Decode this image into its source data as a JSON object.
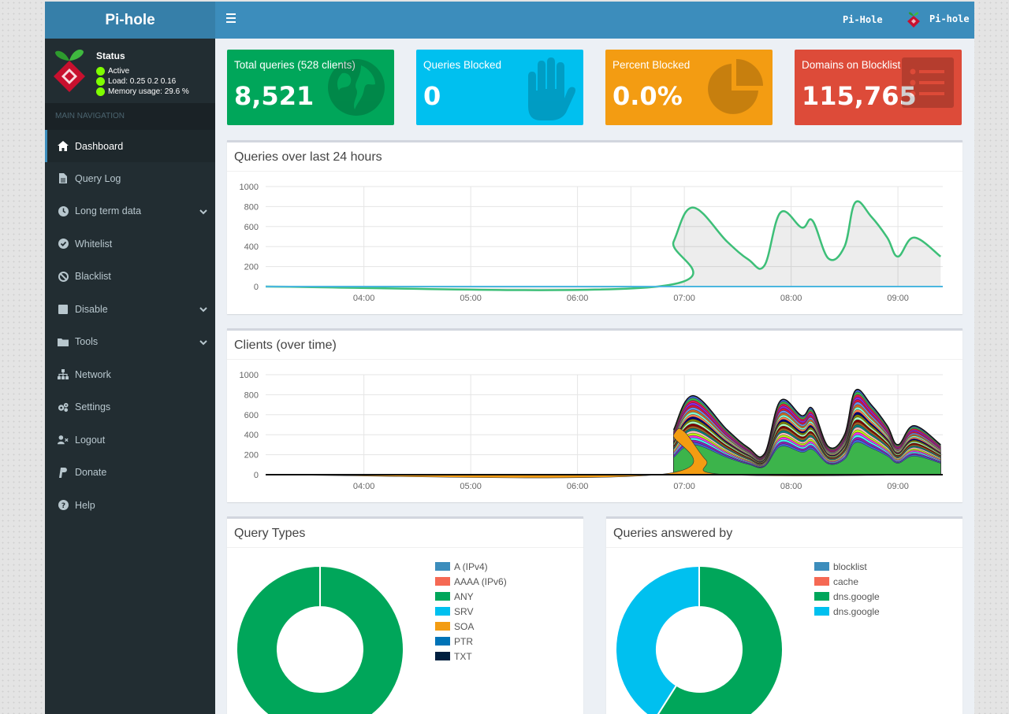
{
  "header": {
    "logo_text": "Pi-hole",
    "hostname": "Pi-Hole",
    "user_label": "Pi-hole"
  },
  "sidebar": {
    "status_title": "Status",
    "status_active": "Active",
    "status_load": "Load:  0.25  0.2  0.16",
    "status_memory": "Memory usage:  29.6 %",
    "nav_header": "MAIN NAVIGATION",
    "items": [
      {
        "label": "Dashboard",
        "icon": "home-icon"
      },
      {
        "label": "Query Log",
        "icon": "file-icon"
      },
      {
        "label": "Long term data",
        "icon": "clock-icon"
      },
      {
        "label": "Whitelist",
        "icon": "check-circle-icon"
      },
      {
        "label": "Blacklist",
        "icon": "ban-icon"
      },
      {
        "label": "Disable",
        "icon": "stop-icon"
      },
      {
        "label": "Tools",
        "icon": "folder-icon"
      },
      {
        "label": "Network",
        "icon": "network-icon"
      },
      {
        "label": "Settings",
        "icon": "gears-icon"
      },
      {
        "label": "Logout",
        "icon": "user-times-icon"
      },
      {
        "label": "Donate",
        "icon": "paypal-icon"
      },
      {
        "label": "Help",
        "icon": "question-circle-icon"
      }
    ]
  },
  "stats": [
    {
      "label": "Total queries (528 clients)",
      "value": "8,521",
      "color": "#00a65a",
      "icon": "globe-icon"
    },
    {
      "label": "Queries Blocked",
      "value": "0",
      "color": "#00c0ef",
      "icon": "hand-icon"
    },
    {
      "label": "Percent Blocked",
      "value": "0.0%",
      "color": "#f39c12",
      "icon": "pie-chart-icon"
    },
    {
      "label": "Domains on Blocklist",
      "value": "115,765",
      "color": "#dd4b39",
      "icon": "list-icon"
    }
  ],
  "panels": {
    "queries_title": "Queries over last 24 hours",
    "clients_title": "Clients (over time)",
    "query_types_title": "Query Types",
    "answered_by_title": "Queries answered by"
  },
  "chart_data": [
    {
      "type": "area",
      "title": "Queries over last 24 hours",
      "ylim": [
        0,
        1000
      ],
      "y_ticks": [
        0,
        200,
        400,
        600,
        800,
        1000
      ],
      "x_ticks": [
        "04:00",
        "05:00",
        "06:00",
        "07:00",
        "08:00",
        "09:00"
      ],
      "x_range_hours": [
        3.08,
        9.42
      ],
      "series": [
        {
          "color": "#3dbf78",
          "points": [
            [
              3.08,
              0
            ],
            [
              6.75,
              0
            ],
            [
              6.9,
              450
            ],
            [
              7.08,
              790
            ],
            [
              7.4,
              450
            ],
            [
              7.6,
              270
            ],
            [
              7.75,
              210
            ],
            [
              7.9,
              740
            ],
            [
              8.1,
              590
            ],
            [
              8.2,
              660
            ],
            [
              8.35,
              280
            ],
            [
              8.5,
              400
            ],
            [
              8.6,
              840
            ],
            [
              8.75,
              700
            ],
            [
              8.9,
              490
            ],
            [
              9.0,
              300
            ],
            [
              9.15,
              490
            ],
            [
              9.4,
              300
            ]
          ]
        },
        {
          "color": "#4ab6df",
          "points": [
            [
              3.08,
              0
            ],
            [
              9.42,
              0
            ]
          ]
        }
      ],
      "grid": true
    },
    {
      "type": "area",
      "title": "Clients (over time)",
      "stacked": true,
      "ylim": [
        0,
        1000
      ],
      "y_ticks": [
        0,
        200,
        400,
        600,
        800,
        1000
      ],
      "x_ticks": [
        "04:00",
        "05:00",
        "06:00",
        "07:00",
        "08:00",
        "09:00"
      ],
      "x_range_hours": [
        3.08,
        9.42
      ],
      "series": [
        {
          "color": "#f39c12",
          "points": [
            [
              3.08,
              0
            ],
            [
              6.75,
              0
            ],
            [
              6.9,
              400
            ],
            [
              7.0,
              430
            ],
            [
              7.2,
              150
            ],
            [
              7.4,
              0
            ],
            [
              9.42,
              0
            ]
          ]
        }
      ],
      "total_points": [
        [
          3.08,
          0
        ],
        [
          6.75,
          0
        ],
        [
          6.9,
          450
        ],
        [
          7.08,
          790
        ],
        [
          7.4,
          450
        ],
        [
          7.6,
          270
        ],
        [
          7.75,
          210
        ],
        [
          7.9,
          740
        ],
        [
          8.1,
          590
        ],
        [
          8.2,
          660
        ],
        [
          8.35,
          280
        ],
        [
          8.5,
          400
        ],
        [
          8.6,
          840
        ],
        [
          8.75,
          700
        ],
        [
          8.9,
          490
        ],
        [
          9.0,
          300
        ],
        [
          9.15,
          490
        ],
        [
          9.4,
          300
        ]
      ],
      "grid": true
    },
    {
      "type": "pie",
      "title": "Query Types",
      "labels": [
        "A (IPv4)",
        "AAAA (IPv6)",
        "ANY",
        "SRV",
        "SOA",
        "PTR",
        "TXT"
      ],
      "colors": [
        "#3c8dbc",
        "#f56954",
        "#00a65a",
        "#00c0ef",
        "#f39c12",
        "#0073b7",
        "#001f3f"
      ],
      "values": [
        0,
        0,
        100,
        0,
        0,
        0,
        0
      ]
    },
    {
      "type": "pie",
      "title": "Queries answered by",
      "labels": [
        "blocklist",
        "cache",
        "dns.google",
        "dns.google"
      ],
      "colors": [
        "#3c8dbc",
        "#f56954",
        "#00a65a",
        "#00c0ef"
      ],
      "values": [
        0,
        0,
        59,
        41
      ]
    }
  ]
}
